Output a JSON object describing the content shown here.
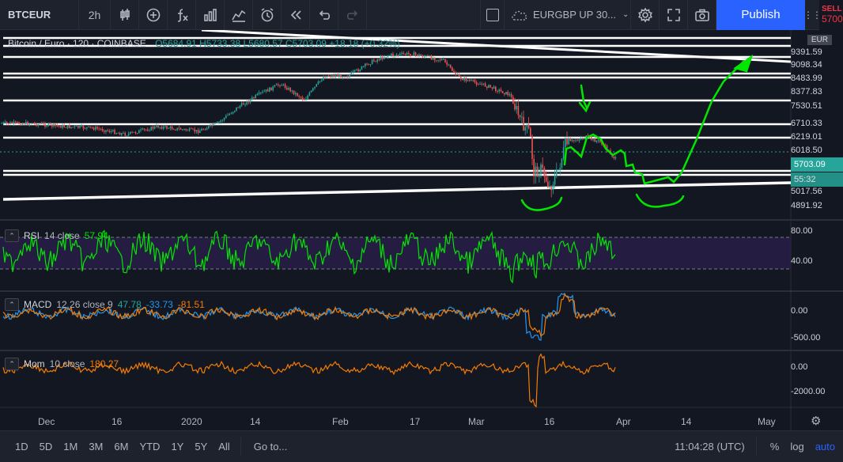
{
  "toolbar": {
    "symbol": "BTCEUR",
    "interval": "2h",
    "layout_name": "EURGBP UP 30...",
    "publish_label": "Publish",
    "sell_label": "SELL",
    "sell_price": "5700"
  },
  "main_legend": {
    "title": "Bitcoin / Euro · 120 · COINBASE",
    "ohlc": "O5684.91 H5733.38 L5680.57 C5703.09 +18.18 (+0.32%)"
  },
  "currency_badge": "EUR",
  "price_axis": [
    "9391.59",
    "9098.34",
    "8483.99",
    "8377.83",
    "7530.51",
    "6710.33",
    "6219.01",
    "6018.50",
    "5017.56",
    "4891.92"
  ],
  "current_price_tag": "5703.09",
  "countdown_tag": "55:32",
  "indicators": {
    "rsi": {
      "name": "RSI",
      "params": "14 close",
      "value": "57.94",
      "axis": [
        "80.00",
        "40.00"
      ]
    },
    "macd": {
      "name": "MACD",
      "params": "12 26 close 9",
      "v1": "47.78",
      "v2": "-33.73",
      "v3": "-81.51",
      "axis": [
        "0.00",
        "-500.00"
      ]
    },
    "mom": {
      "name": "Mom",
      "params": "10 close",
      "value": "180.27",
      "axis": [
        "0.00",
        "-2000.00"
      ]
    }
  },
  "time_axis": [
    "Dec",
    "16",
    "2020",
    "14",
    "Feb",
    "17",
    "Mar",
    "16",
    "Apr",
    "14",
    "May"
  ],
  "bottombar": {
    "ranges": [
      "1D",
      "5D",
      "1M",
      "3M",
      "6M",
      "YTD",
      "1Y",
      "5Y",
      "All"
    ],
    "goto_label": "Go to...",
    "clock": "11:04:28 (UTC)",
    "percent_label": "%",
    "log_label": "log",
    "auto_label": "auto"
  },
  "colors": {
    "background": "#131722",
    "panel": "#1e222d",
    "up": "#26a69a",
    "down": "#ef5350",
    "drawing": "#00e600",
    "publish": "#2962ff",
    "rsi_band": "#2a1e4a",
    "mom_line": "#f57c00"
  }
}
